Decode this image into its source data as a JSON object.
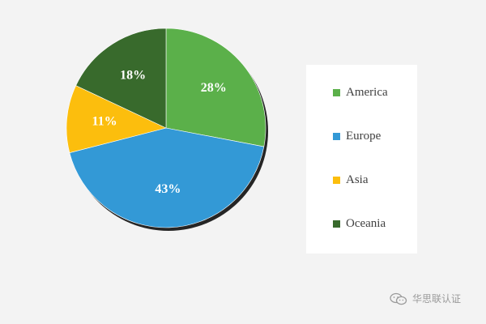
{
  "chart_data": {
    "type": "pie",
    "categories": [
      "America",
      "Europe",
      "Asia",
      "Oceania"
    ],
    "values": [
      28,
      43,
      11,
      18
    ],
    "labels": [
      "28%",
      "43%",
      "11%",
      "18%"
    ],
    "colors": [
      "#5bb04a",
      "#3399d6",
      "#fcbe0d",
      "#386a2c"
    ],
    "legend_position": "right",
    "title": ""
  },
  "watermark": {
    "text": "华思联认证",
    "icon": "wechat-icon"
  }
}
